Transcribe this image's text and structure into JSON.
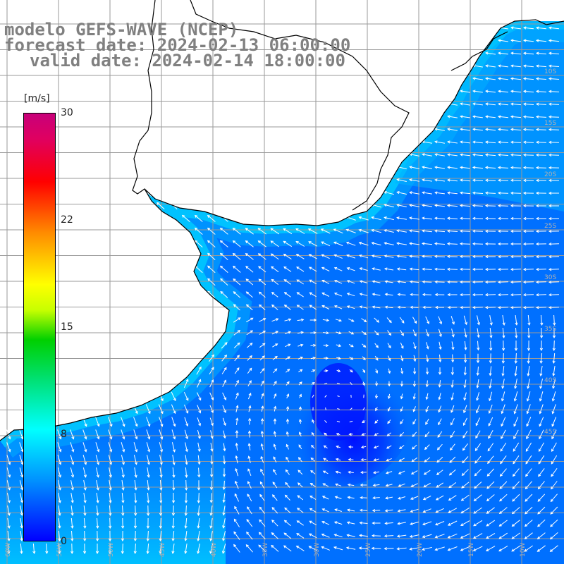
{
  "title": {
    "line1": "modelo GEFS-WAVE (NCEP)",
    "line2": "forecast date: 2024-02-13 06:00:00",
    "line3": "valid date: 2024-02-14 18:00:00"
  },
  "colorbar": {
    "unit": "[m/s]",
    "ticks": [
      "30",
      "22",
      "15",
      "8",
      "0"
    ],
    "tick_values": [
      30,
      22,
      15,
      8,
      0
    ],
    "min": 0,
    "max": 30
  },
  "colors": {
    "ocean_low": "#0000ff",
    "ocean_mid": "#0090ff",
    "ocean_high": "#00ffff",
    "land": "#ffffff",
    "grid": "#9a9a9a",
    "coast": "#000000",
    "arrow": "#ffffff",
    "title": "#808080"
  },
  "lon_labels": [
    "60W",
    "55W",
    "50W",
    "45W",
    "40W",
    "35W",
    "30W",
    "25W",
    "20W",
    "15W",
    "10W"
  ],
  "lat_labels": [
    "10S",
    "15S",
    "20S",
    "25S",
    "30S",
    "35S",
    "40S",
    "45S"
  ]
}
